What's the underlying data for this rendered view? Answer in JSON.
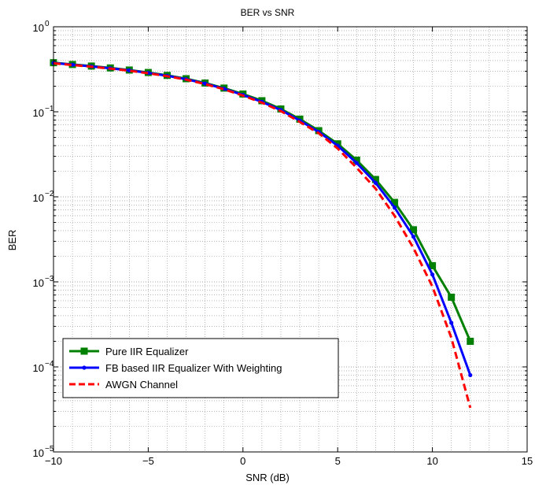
{
  "chart_data": {
    "type": "line",
    "title": "BER vs SNR",
    "xlabel": "SNR (dB)",
    "ylabel": "BER",
    "xlim": [
      -10,
      15
    ],
    "ylim": [
      1e-05,
      1
    ],
    "yscale": "log",
    "grid": true,
    "legend_position": "bottom-left",
    "x_ticks": [
      "−10",
      "−5",
      "0",
      "5",
      "10",
      "15"
    ],
    "x_tick_values": [
      -10,
      -5,
      0,
      5,
      10,
      15
    ],
    "y_ticks": [
      {
        "base": "10",
        "exp": "0",
        "value": 1
      },
      {
        "base": "10",
        "exp": "−1",
        "value": 0.1
      },
      {
        "base": "10",
        "exp": "−2",
        "value": 0.01
      },
      {
        "base": "10",
        "exp": "−3",
        "value": 0.001
      },
      {
        "base": "10",
        "exp": "−4",
        "value": 0.0001
      },
      {
        "base": "10",
        "exp": "−5",
        "value": 1e-05
      }
    ],
    "series": [
      {
        "name": "Pure IIR Equalizer",
        "color": "#008000",
        "marker": "square",
        "dash": "solid",
        "x": [
          -10,
          -9,
          -8,
          -7,
          -6,
          -5,
          -4,
          -3,
          -2,
          -1,
          0,
          1,
          2,
          3,
          4,
          5,
          6,
          7,
          8,
          9,
          10,
          11,
          12
        ],
        "y": [
          0.378,
          0.36,
          0.345,
          0.328,
          0.31,
          0.29,
          0.268,
          0.245,
          0.218,
          0.19,
          0.162,
          0.135,
          0.108,
          0.082,
          0.06,
          0.042,
          0.027,
          0.016,
          0.0086,
          0.0041,
          0.00155,
          0.00066,
          0.0002
        ]
      },
      {
        "name": "FB based IIR Equalizer With Weighting",
        "color": "#0000ff",
        "marker": "dot",
        "dash": "solid",
        "x": [
          -10,
          -9,
          -8,
          -7,
          -6,
          -5,
          -4,
          -3,
          -2,
          -1,
          0,
          1,
          2,
          3,
          4,
          5,
          6,
          7,
          8,
          9,
          10,
          11,
          12
        ],
        "y": [
          0.375,
          0.358,
          0.342,
          0.325,
          0.307,
          0.287,
          0.265,
          0.242,
          0.215,
          0.187,
          0.158,
          0.131,
          0.105,
          0.079,
          0.058,
          0.04,
          0.025,
          0.0146,
          0.0075,
          0.0034,
          0.00122,
          0.00033,
          8e-05
        ]
      },
      {
        "name": "AWGN Channel",
        "color": "#ff0000",
        "marker": "none",
        "dash": "dashed",
        "x": [
          -10,
          -9,
          -8,
          -7,
          -6,
          -5,
          -4,
          -3,
          -2,
          -1,
          0,
          1,
          2,
          3,
          4,
          5,
          6,
          7,
          8,
          9,
          10,
          11,
          12
        ],
        "y": [
          0.372,
          0.355,
          0.339,
          0.322,
          0.304,
          0.284,
          0.262,
          0.239,
          0.212,
          0.184,
          0.155,
          0.128,
          0.102,
          0.076,
          0.056,
          0.037,
          0.022,
          0.0125,
          0.006,
          0.0025,
          0.00088,
          0.00022,
          3.3e-05
        ]
      }
    ]
  }
}
